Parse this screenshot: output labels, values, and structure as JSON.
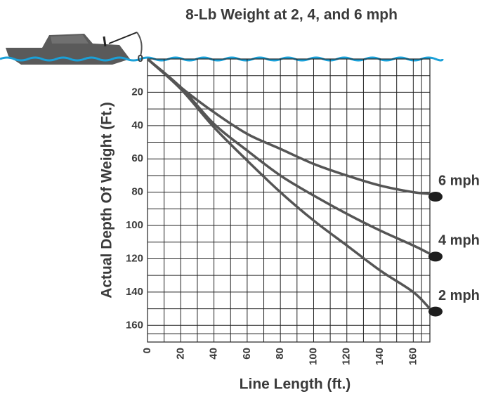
{
  "chart_data": {
    "type": "line",
    "title": "8-Lb Weight at 2, 4, and 6 mph",
    "x_label": "Line Length (ft.)",
    "y_label": "Actual Depth Of Weight (Ft.)",
    "x": [
      0,
      20,
      40,
      60,
      80,
      100,
      120,
      140,
      160,
      170
    ],
    "series": [
      {
        "name": "6 mph",
        "color": "#555555",
        "values": [
          0,
          17,
          32,
          45,
          54,
          63,
          70,
          76,
          80,
          81
        ]
      },
      {
        "name": "4 mph",
        "color": "#555555",
        "values": [
          0,
          17,
          39,
          55,
          70,
          82,
          93,
          103,
          112,
          117
        ]
      },
      {
        "name": "2 mph",
        "color": "#555555",
        "values": [
          0,
          18,
          41,
          61,
          80,
          97,
          112,
          127,
          140,
          150
        ]
      }
    ],
    "xlim": [
      0,
      170
    ],
    "ylim": [
      0,
      170
    ],
    "y_inverted": true,
    "xticks": [
      0,
      20,
      40,
      60,
      80,
      100,
      120,
      140,
      160
    ],
    "yticks": [
      0,
      20,
      40,
      60,
      80,
      100,
      120,
      140,
      160
    ],
    "grid": true
  }
}
